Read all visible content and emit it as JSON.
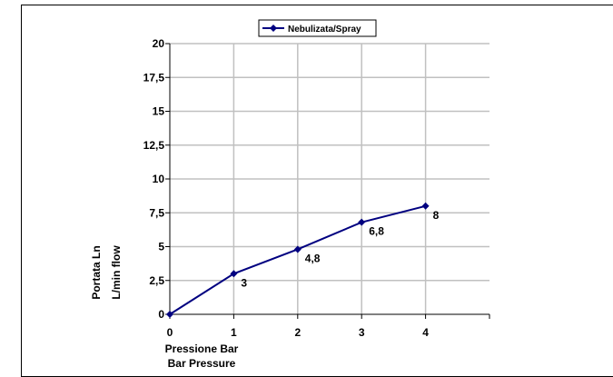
{
  "chart_data": {
    "type": "line",
    "title": "",
    "legend": {
      "position": "top",
      "entries": [
        "Nebulizata/Spray"
      ]
    },
    "xlabel_lines": [
      "Pressione Bar",
      "Bar Pressure"
    ],
    "ylabel_lines": [
      "Portata Ln",
      "L/min flow"
    ],
    "x_ticks": [
      "0",
      "1",
      "2",
      "3",
      "4"
    ],
    "y_ticks": [
      "0",
      "2,5",
      "5",
      "7,5",
      "10",
      "12,5",
      "15",
      "17,5",
      "20"
    ],
    "xlim": [
      0,
      5
    ],
    "ylim": [
      0,
      20
    ],
    "grid": true,
    "series": [
      {
        "name": "Nebulizata/Spray",
        "color": "#000080",
        "x": [
          0,
          1,
          2,
          3,
          4
        ],
        "y": [
          0,
          3,
          4.8,
          6.8,
          8
        ],
        "data_labels": [
          "",
          "3",
          "4,8",
          "6,8",
          "8"
        ]
      }
    ]
  }
}
